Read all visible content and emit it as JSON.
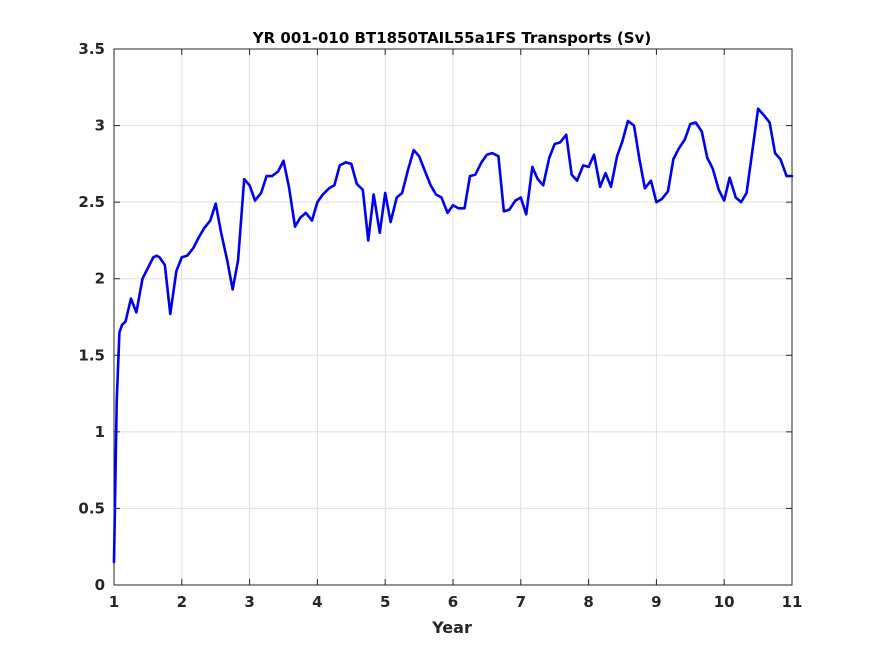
{
  "chart_data": {
    "type": "line",
    "title": "YR 001-010 BT1850TAIL55a1FS Transports (Sv)",
    "xlabel": "Year",
    "ylabel": "",
    "xlim": [
      1,
      11
    ],
    "ylim": [
      0,
      3.5
    ],
    "xticks": [
      "1",
      "2",
      "3",
      "4",
      "5",
      "6",
      "7",
      "8",
      "9",
      "10",
      "11"
    ],
    "yticks": [
      "0",
      "0.5",
      "1",
      "1.5",
      "2",
      "2.5",
      "3",
      "3.5"
    ],
    "grid": true,
    "series": [
      {
        "color": "#0000ee",
        "x": [
          1.0,
          1.04,
          1.08,
          1.12,
          1.17,
          1.25,
          1.33,
          1.42,
          1.5,
          1.58,
          1.63,
          1.67,
          1.75,
          1.83,
          1.92,
          2.0,
          2.08,
          2.17,
          2.25,
          2.33,
          2.42,
          2.5,
          2.58,
          2.67,
          2.75,
          2.83,
          2.92,
          3.0,
          3.08,
          3.17,
          3.25,
          3.33,
          3.42,
          3.5,
          3.58,
          3.67,
          3.75,
          3.83,
          3.92,
          4.0,
          4.08,
          4.17,
          4.25,
          4.33,
          4.42,
          4.5,
          4.58,
          4.67,
          4.75,
          4.83,
          4.92,
          5.0,
          5.08,
          5.17,
          5.25,
          5.33,
          5.42,
          5.5,
          5.58,
          5.67,
          5.75,
          5.83,
          5.92,
          6.0,
          6.08,
          6.17,
          6.25,
          6.33,
          6.42,
          6.5,
          6.58,
          6.67,
          6.75,
          6.83,
          6.92,
          7.0,
          7.08,
          7.17,
          7.25,
          7.33,
          7.42,
          7.5,
          7.58,
          7.67,
          7.75,
          7.83,
          7.92,
          8.0,
          8.08,
          8.17,
          8.25,
          8.33,
          8.42,
          8.5,
          8.58,
          8.67,
          8.75,
          8.83,
          8.92,
          9.0,
          9.08,
          9.17,
          9.25,
          9.33,
          9.42,
          9.5,
          9.58,
          9.67,
          9.75,
          9.83,
          9.92,
          10.0,
          10.08,
          10.17,
          10.25,
          10.33,
          10.42,
          10.5,
          10.58,
          10.67,
          10.75,
          10.83,
          10.92,
          11.0
        ],
        "y": [
          0.15,
          1.2,
          1.65,
          1.7,
          1.72,
          1.87,
          1.78,
          2.0,
          2.07,
          2.14,
          2.15,
          2.14,
          2.09,
          1.77,
          2.05,
          2.14,
          2.15,
          2.2,
          2.27,
          2.33,
          2.38,
          2.49,
          2.3,
          2.12,
          1.93,
          2.12,
          2.65,
          2.61,
          2.51,
          2.56,
          2.67,
          2.67,
          2.7,
          2.77,
          2.6,
          2.34,
          2.4,
          2.43,
          2.38,
          2.5,
          2.55,
          2.59,
          2.61,
          2.74,
          2.76,
          2.75,
          2.62,
          2.58,
          2.25,
          2.55,
          2.3,
          2.56,
          2.37,
          2.53,
          2.56,
          2.7,
          2.84,
          2.8,
          2.71,
          2.61,
          2.55,
          2.53,
          2.43,
          2.48,
          2.46,
          2.46,
          2.67,
          2.68,
          2.76,
          2.81,
          2.82,
          2.8,
          2.44,
          2.45,
          2.51,
          2.53,
          2.42,
          2.73,
          2.65,
          2.61,
          2.79,
          2.88,
          2.89,
          2.94,
          2.68,
          2.64,
          2.74,
          2.73,
          2.81,
          2.6,
          2.69,
          2.6,
          2.8,
          2.9,
          3.03,
          3.0,
          2.78,
          2.59,
          2.64,
          2.5,
          2.52,
          2.57,
          2.78,
          2.85,
          2.91,
          3.01,
          3.02,
          2.96,
          2.79,
          2.72,
          2.58,
          2.51,
          2.66,
          2.53,
          2.5,
          2.56,
          2.85,
          3.11,
          3.07,
          3.02,
          2.82,
          2.78,
          2.67,
          2.67
        ]
      }
    ]
  }
}
